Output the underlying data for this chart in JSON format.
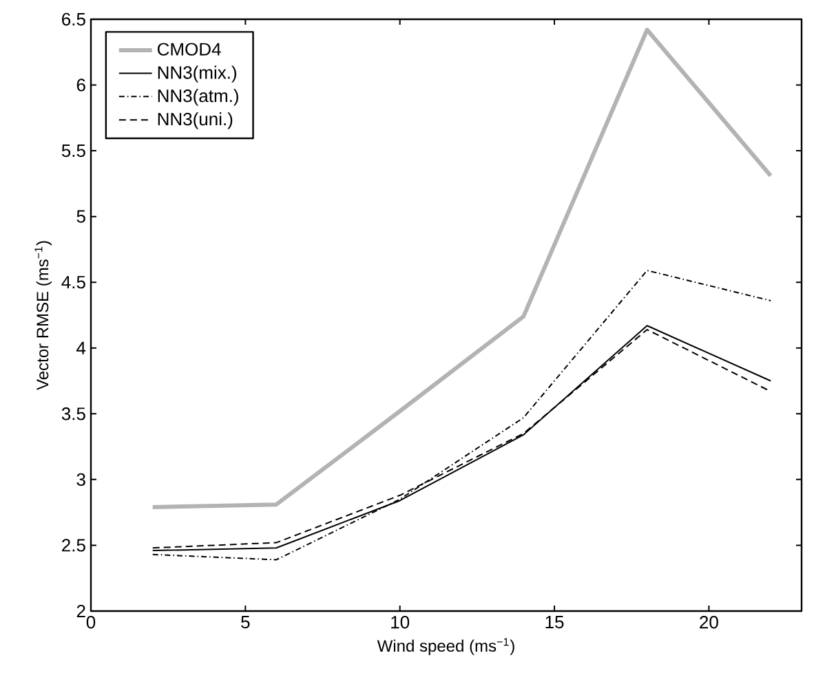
{
  "chart_data": {
    "type": "line",
    "xlabel": "Wind speed (ms$^{−1}$)",
    "ylabel": "Vector RMSE (ms$^{−1}$)",
    "x": [
      2,
      6,
      10,
      14,
      18,
      22
    ],
    "series": [
      {
        "name": "CMOD4",
        "color": "#b3b3b3",
        "values": [
          2.79,
          2.81,
          3.52,
          4.24,
          6.42,
          5.31
        ],
        "line_style": "solid"
      },
      {
        "name": "NN3(mix.)",
        "color": "#000000",
        "values": [
          2.46,
          2.48,
          2.84,
          3.34,
          4.17,
          3.75
        ],
        "line_style": "solid"
      },
      {
        "name": "NN3(atm.)",
        "color": "#000000",
        "values": [
          2.43,
          2.39,
          2.85,
          3.47,
          4.59,
          4.36
        ],
        "line_style": "dashdot"
      },
      {
        "name": "NN3(uni.)",
        "color": "#000000",
        "values": [
          2.48,
          2.52,
          2.88,
          3.35,
          4.14,
          3.67
        ],
        "line_style": "dashed"
      }
    ],
    "xlim": [
      0,
      23
    ],
    "ylim": [
      2,
      6.5
    ],
    "xticks": [
      0,
      5,
      10,
      15,
      20
    ],
    "yticks": [
      2,
      2.5,
      3,
      3.5,
      4,
      4.5,
      5,
      5.5,
      6,
      6.5
    ],
    "legend": "top left",
    "grid": false
  }
}
